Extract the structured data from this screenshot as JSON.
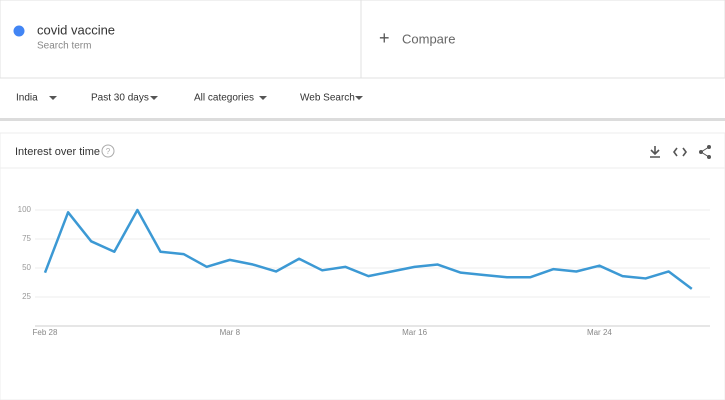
{
  "search": {
    "term": "covid vaccine",
    "subtitle": "Search term",
    "compare": "Compare"
  },
  "filters": [
    "India",
    "Past 30 days",
    "All categories",
    "Web Search"
  ],
  "chart_data": {
    "type": "line",
    "title": "Interest over time",
    "categories": [
      "Feb 28",
      null,
      null,
      null,
      null,
      null,
      null,
      null,
      "Mar 8",
      null,
      null,
      null,
      null,
      null,
      null,
      null,
      "Mar 16",
      null,
      null,
      null,
      null,
      null,
      null,
      null,
      "Mar 24",
      null,
      null,
      null,
      null
    ],
    "series": [
      {
        "name": "covid vaccine",
        "color": "#4285f4",
        "values": [
          46,
          98,
          73,
          64,
          100,
          64,
          62,
          51,
          57,
          53,
          47,
          58,
          48,
          51,
          43,
          47,
          51,
          53,
          46,
          44,
          42,
          42,
          49,
          47,
          52,
          43,
          41,
          47,
          32
        ]
      }
    ],
    "line_color": "#3c99d4",
    "ylim": [
      0,
      100
    ],
    "yticks": [
      25,
      50,
      75,
      100
    ],
    "grid": true
  }
}
